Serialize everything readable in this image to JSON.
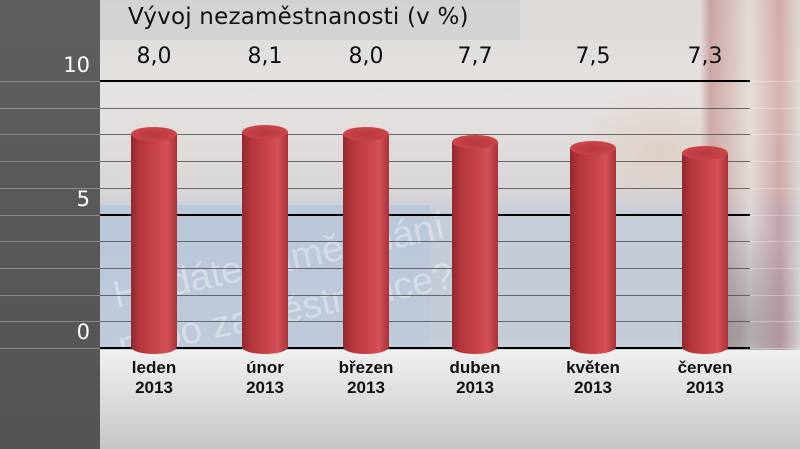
{
  "chart_data": {
    "type": "bar",
    "title": "Vývoj nezaměstnanosti (v %)",
    "categories": [
      "leden 2013",
      "únor 2013",
      "březen 2013",
      "duben 2013",
      "květen 2013",
      "červen 2013"
    ],
    "category_lines": [
      [
        "leden",
        "2013"
      ],
      [
        "únor",
        "2013"
      ],
      [
        "březen",
        "2013"
      ],
      [
        "duben",
        "2013"
      ],
      [
        "květen",
        "2013"
      ],
      [
        "červen",
        "2013"
      ]
    ],
    "values": [
      8.0,
      8.1,
      8.0,
      7.7,
      7.5,
      7.3
    ],
    "value_labels": [
      "8,0",
      "8,1",
      "8,0",
      "7,7",
      "7,5",
      "7,3"
    ],
    "xlabel": "",
    "ylabel": "",
    "ylim": [
      0,
      10
    ],
    "yticks": [
      "0",
      "5",
      "10"
    ],
    "grid": true,
    "minor_grid_step": 1,
    "legend": null,
    "bar_style": "3d-cylinder",
    "bar_color": "#c4414a"
  },
  "background": {
    "watermark_lines": [
      "Hledáte zaměstnání",
      "nebo zaměstnance?"
    ],
    "left_panel_color": "#59595b"
  }
}
